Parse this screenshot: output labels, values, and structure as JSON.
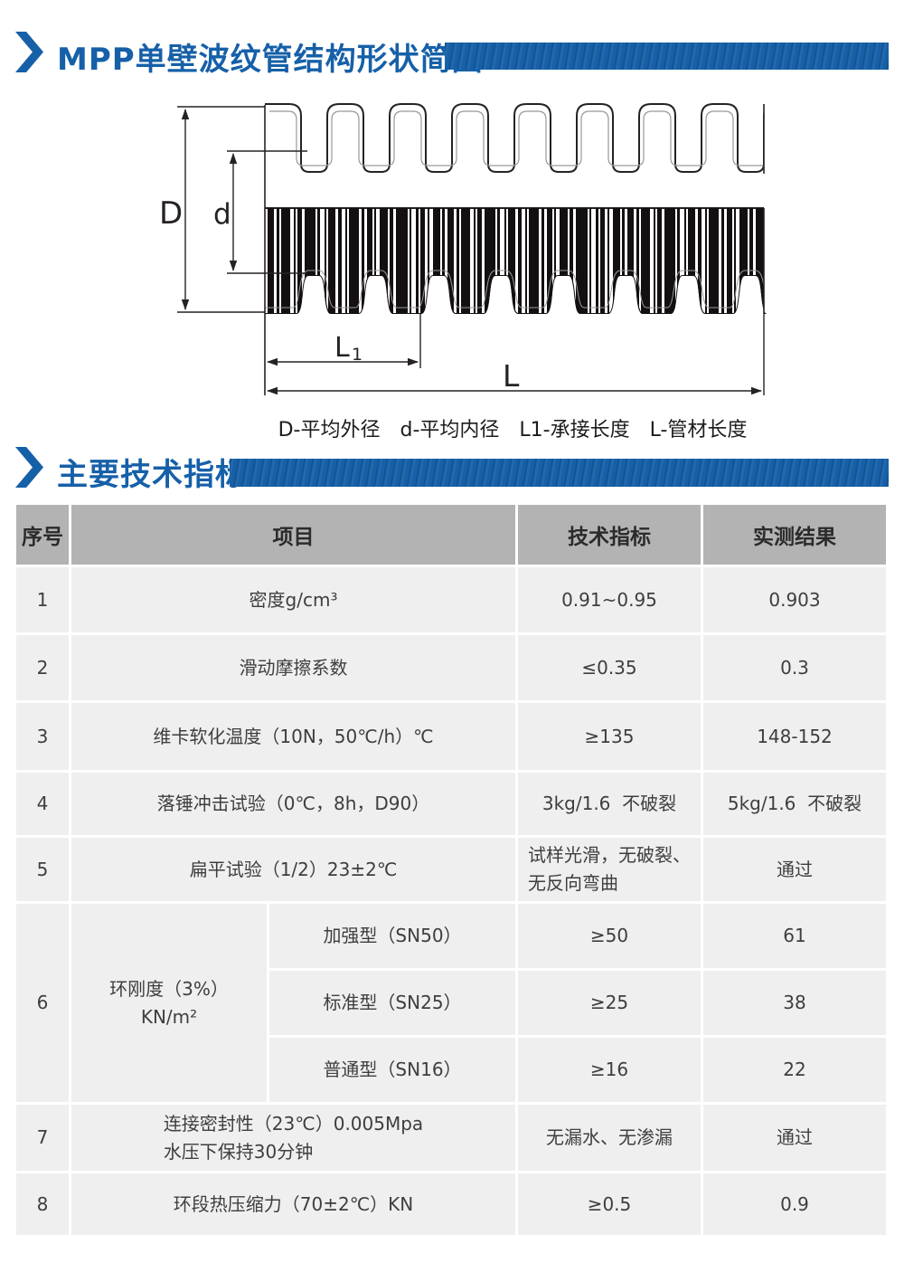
{
  "page": {
    "accent_color": "#1660a8",
    "table_header_bg": "#b3b3b3",
    "table_row_bg": "#f0efef"
  },
  "section_diagram": {
    "title": "MPP单壁波纹管结构形状简图",
    "caption": "D-平均外径　d-平均内径　L1-承接长度　L-管材长度",
    "dim_labels": {
      "D": "D",
      "d": "d",
      "L1_main": "L",
      "L1_sub": "1",
      "L": "L"
    }
  },
  "section_specs": {
    "title": "主要技术指标"
  },
  "table": {
    "headers": {
      "no": "序号",
      "item": "项目",
      "spec": "技术指标",
      "result": "实测结果"
    },
    "rows": [
      {
        "no": "1",
        "item": "密度g/cm³",
        "spec": "0.91~0.95",
        "result": "0.903"
      },
      {
        "no": "2",
        "item": "滑动摩擦系数",
        "spec": "≤0.35",
        "result": "0.3"
      },
      {
        "no": "3",
        "item": "维卡软化温度（10N，50℃/h）℃",
        "spec": "≥135",
        "result": "148-152"
      },
      {
        "no": "4",
        "item": "落锤冲击试验（0℃，8h，D90）",
        "spec": "3kg/1.6  不破裂",
        "result": "5kg/1.6  不破裂"
      },
      {
        "no": "5",
        "item": "扁平试验（1/2）23±2℃",
        "spec": "试样光滑，无破裂、\n无反向弯曲",
        "result": "通过"
      },
      {
        "no": "6",
        "item": "环刚度（3%）\nKN/m²",
        "subrows": [
          {
            "type": "加强型（SN50）",
            "spec": "≥50",
            "result": "61"
          },
          {
            "type": "标准型（SN25）",
            "spec": "≥25",
            "result": "38"
          },
          {
            "type": "普通型（SN16）",
            "spec": "≥16",
            "result": "22"
          }
        ]
      },
      {
        "no": "7",
        "item": "连接密封性（23℃）0.005Mpa\n水压下保持30分钟",
        "spec": "无漏水、无渗漏",
        "result": "通过"
      },
      {
        "no": "8",
        "item": "环段热压缩力（70±2℃）KN",
        "spec": "≥0.5",
        "result": "0.9"
      }
    ]
  }
}
